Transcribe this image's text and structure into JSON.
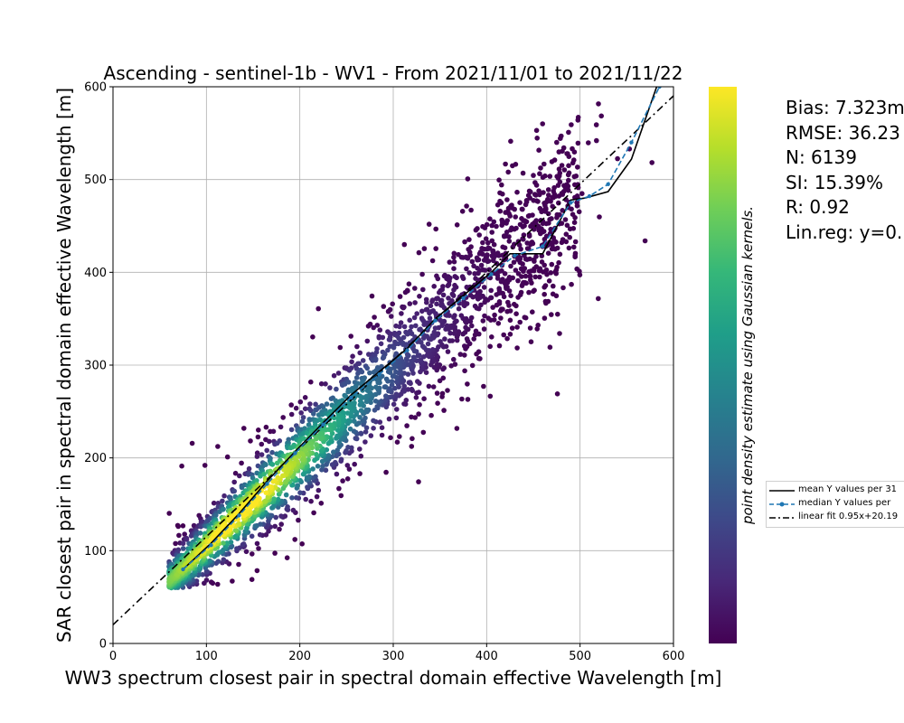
{
  "chart_data": {
    "type": "scatter",
    "title": "Ascending - sentinel-1b - WV1 - From 2021/11/01 to 2021/11/22",
    "xlabel": "WW3 spectrum closest pair in spectral domain effective Wavelength [m]",
    "ylabel": "SAR closest pair in spectral domain effective Wavelength [m]",
    "colorbar_label": "point density estimate using Gaussian kernels.",
    "xlim": [
      0,
      600
    ],
    "ylim": [
      0,
      600
    ],
    "xticks": [
      "0",
      "100",
      "200",
      "300",
      "400",
      "500",
      "600"
    ],
    "yticks": [
      "0",
      "100",
      "200",
      "300",
      "400",
      "500",
      "600"
    ],
    "grid": true,
    "colormap": [
      "#440154",
      "#482878",
      "#3e4989",
      "#31688e",
      "#26828e",
      "#1f9e89",
      "#35b779",
      "#6ece58",
      "#b5de2b",
      "#fde725"
    ],
    "density_core": [
      [
        70,
        72
      ],
      [
        110,
        112
      ],
      [
        140,
        142
      ],
      [
        180,
        185
      ],
      [
        220,
        225
      ],
      [
        260,
        262
      ],
      [
        300,
        300
      ],
      [
        340,
        338
      ],
      [
        380,
        375
      ],
      [
        420,
        410
      ]
    ],
    "mean_line": {
      "name": "mean Y values per 31",
      "color": "#000000",
      "x": [
        75,
        105,
        135,
        165,
        195,
        225,
        255,
        285,
        315,
        345,
        375,
        405,
        425,
        460,
        490,
        505,
        530,
        555,
        582,
        600
      ],
      "y": [
        80,
        108,
        140,
        175,
        207,
        238,
        268,
        293,
        318,
        350,
        375,
        400,
        420,
        420,
        478,
        480,
        487,
        522,
        600,
        640
      ]
    },
    "median_line": {
      "name": "median Y values per",
      "color": "#1f77b4",
      "x": [
        75,
        105,
        135,
        165,
        195,
        225,
        255,
        285,
        315,
        345,
        375,
        405,
        430,
        460,
        490,
        510,
        530,
        555,
        585
      ],
      "y": [
        80,
        106,
        138,
        172,
        205,
        236,
        265,
        290,
        316,
        348,
        372,
        398,
        418,
        428,
        475,
        482,
        495,
        540,
        600
      ]
    },
    "fit_line": {
      "name": "linear fit 0.95x+20.19",
      "color": "#000000",
      "slope": 0.95,
      "intercept": 20.19,
      "x": [
        0,
        600
      ],
      "y": [
        20.19,
        590.19
      ]
    },
    "legend_placement": "right"
  },
  "stats": {
    "bias": "Bias: 7.323m",
    "rmse": "RMSE: 36.23",
    "n": "N: 6139",
    "si": "SI: 15.39%",
    "r": "R: 0.92",
    "linreg": "Lin.reg: y=0."
  },
  "legend": {
    "mean": "mean Y values per 31",
    "median": "median Y values per",
    "fit": "linear fit 0.95x+20.19"
  }
}
